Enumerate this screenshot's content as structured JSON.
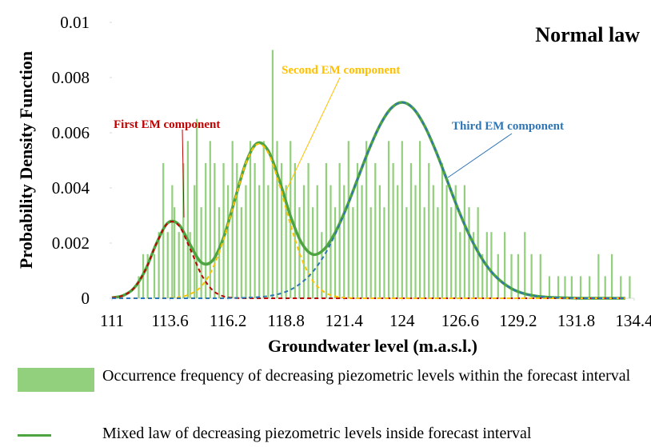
{
  "chart_data": {
    "type": "combo",
    "title": "Normal law",
    "xlabel": "Groundwater level (m.a.s.l.)",
    "ylabel": "Probability Density Function",
    "xlim": [
      111,
      134.4
    ],
    "xticks": [
      111,
      113.6,
      116.2,
      118.8,
      121.4,
      124,
      126.6,
      129.2,
      131.8,
      134.4
    ],
    "ylim": [
      0,
      0.01
    ],
    "yticks": [
      0,
      0.002,
      0.004,
      0.006,
      0.008,
      0.01
    ],
    "x": [
      111,
      111.5,
      112,
      112.5,
      113,
      113.5,
      114,
      114.5,
      115,
      115.5,
      116,
      116.5,
      117,
      117.5,
      118,
      118.5,
      119,
      119.5,
      120,
      120.5,
      121,
      121.5,
      122,
      122.5,
      123,
      123.5,
      124,
      124.5,
      125,
      125.5,
      126,
      126.5,
      127,
      127.5,
      128,
      128.5,
      129,
      129.5,
      130,
      130.5,
      131,
      131.5,
      132,
      132.5,
      133,
      133.5,
      134
    ],
    "series": [
      {
        "type": "bar",
        "name": "Occurrence frequency of decreasing piezometric levels within the forecast interval",
        "color": "#93d07e",
        "x": [
          112.2,
          112.4,
          112.6,
          112.9,
          113.1,
          113.3,
          113.5,
          113.7,
          113.8,
          114.0,
          114.2,
          114.4,
          114.5,
          114.7,
          114.8,
          115.0,
          115.2,
          115.4,
          115.6,
          115.8,
          116.0,
          116.2,
          116.4,
          116.6,
          116.8,
          117.0,
          117.2,
          117.4,
          117.6,
          117.8,
          118.0,
          118.2,
          118.4,
          118.6,
          118.8,
          119.0,
          119.2,
          119.4,
          119.6,
          119.8,
          120.0,
          120.2,
          120.4,
          120.6,
          120.8,
          121.0,
          121.2,
          121.4,
          121.6,
          121.8,
          122.0,
          122.2,
          122.4,
          122.6,
          122.8,
          123.0,
          123.2,
          123.4,
          123.6,
          123.8,
          124.0,
          124.2,
          124.4,
          124.6,
          124.8,
          125.0,
          125.2,
          125.4,
          125.6,
          125.8,
          126.0,
          126.2,
          126.4,
          126.6,
          126.8,
          127.0,
          127.2,
          127.4,
          127.6,
          127.8,
          128.0,
          128.3,
          128.6,
          128.9,
          129.2,
          129.5,
          129.8,
          130.2,
          130.6,
          131.0,
          131.3,
          131.6,
          132.0,
          132.4,
          132.8,
          133.1,
          133.4,
          133.8,
          134.2
        ],
        "values": [
          0.0008,
          0.0016,
          0.0016,
          0.0016,
          0.0024,
          0.0049,
          0.0024,
          0.0041,
          0.0033,
          0.0024,
          0.0049,
          0.0057,
          0.0024,
          0.0041,
          0.0065,
          0.0033,
          0.0049,
          0.0057,
          0.0049,
          0.0033,
          0.0049,
          0.0041,
          0.0057,
          0.0049,
          0.0033,
          0.0041,
          0.0057,
          0.0049,
          0.0041,
          0.0057,
          0.0041,
          0.009,
          0.0057,
          0.0049,
          0.0041,
          0.0057,
          0.0049,
          0.0033,
          0.0041,
          0.0049,
          0.0033,
          0.0041,
          0.0024,
          0.0049,
          0.0041,
          0.0033,
          0.0049,
          0.0041,
          0.0057,
          0.0033,
          0.0049,
          0.0041,
          0.0057,
          0.0033,
          0.0049,
          0.0041,
          0.0033,
          0.0057,
          0.0049,
          0.0041,
          0.0057,
          0.0033,
          0.0049,
          0.0041,
          0.0057,
          0.0033,
          0.0049,
          0.0041,
          0.0033,
          0.0049,
          0.0041,
          0.0033,
          0.0041,
          0.0024,
          0.0041,
          0.0033,
          0.0024,
          0.0033,
          0.0016,
          0.0024,
          0.0024,
          0.0016,
          0.0024,
          0.0016,
          0.0016,
          0.0024,
          0.0016,
          0.0016,
          0.0008,
          0.0008,
          0.0008,
          0.0008,
          0.0008,
          0.0008,
          0.0016,
          0.0008,
          0.0016,
          0.0008,
          0.0008
        ]
      },
      {
        "type": "line",
        "name": "Mixed law of decreasing piezometric levels inside forecast interval",
        "color": "#4ea440",
        "dash": false,
        "values": [
          2e-05,
          0.0001,
          0.00038,
          0.00103,
          0.002,
          0.00273,
          0.00267,
          0.00195,
          0.0013,
          0.00136,
          0.0022,
          0.00356,
          0.00491,
          0.00562,
          0.00535,
          0.00428,
          0.00298,
          0.002,
          0.00159,
          0.00177,
          0.00238,
          0.00327,
          0.00431,
          0.00536,
          0.00626,
          0.00688,
          0.0071,
          0.00688,
          0.00626,
          0.00536,
          0.00431,
          0.00325,
          0.00231,
          0.00154,
          0.00096,
          0.00057,
          0.00031,
          0.00016,
          8e-05,
          4e-05,
          2e-05,
          1e-05,
          0,
          0,
          0,
          0,
          0
        ]
      },
      {
        "type": "line",
        "label": "First EM component",
        "color": "#c00000",
        "dash": true,
        "values": [
          2e-05,
          0.0001,
          0.00038,
          0.00103,
          0.002,
          0.00272,
          0.00263,
          0.0018,
          0.00087,
          0.0003,
          7e-05,
          1e-05,
          0,
          0,
          0,
          0,
          0,
          0,
          0,
          0,
          0,
          0,
          0,
          0,
          0,
          0,
          0,
          0,
          0,
          0,
          0,
          0,
          0,
          0,
          0,
          0,
          0,
          0,
          0,
          0,
          0,
          0,
          0,
          0,
          0,
          0,
          0
        ]
      },
      {
        "type": "line",
        "label": "Second EM component",
        "color": "#ffc000",
        "dash": true,
        "values": [
          0,
          0,
          0,
          0,
          0,
          1e-05,
          4e-05,
          0.00015,
          0.00043,
          0.00106,
          0.00213,
          0.00354,
          0.00489,
          0.00558,
          0.00527,
          0.00412,
          0.00267,
          0.00143,
          0.00063,
          0.00023,
          7e-05,
          2e-05,
          0,
          0,
          0,
          0,
          0,
          0,
          0,
          0,
          0,
          0,
          0,
          0,
          0,
          0,
          0,
          0,
          0,
          0,
          0,
          0,
          0,
          0,
          0,
          0,
          0
        ]
      },
      {
        "type": "line",
        "label": "Third EM component",
        "color": "#2e75b6",
        "dash": true,
        "values": [
          0,
          0,
          0,
          0,
          0,
          0,
          0,
          0,
          0,
          0,
          0,
          1e-05,
          2e-05,
          4e-05,
          8e-05,
          0.00016,
          0.00031,
          0.00057,
          0.00096,
          0.00154,
          0.00231,
          0.00325,
          0.00431,
          0.00536,
          0.00626,
          0.00688,
          0.0071,
          0.00688,
          0.00626,
          0.00536,
          0.00431,
          0.00325,
          0.00231,
          0.00154,
          0.00096,
          0.00057,
          0.00031,
          0.00016,
          8e-05,
          4e-05,
          2e-05,
          1e-05,
          0,
          0,
          0,
          0,
          0
        ]
      }
    ]
  }
}
